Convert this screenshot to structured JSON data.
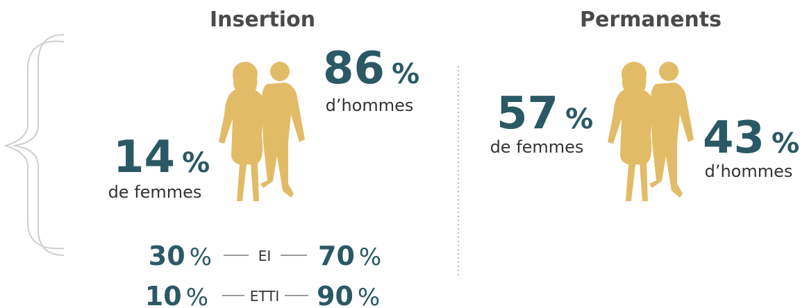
{
  "panels": [
    {
      "title": "Insertion",
      "stats": [
        {
          "value": 86,
          "unit": "%",
          "label": "d’hommes"
        },
        {
          "value": 14,
          "unit": "%",
          "label": "de femmes"
        }
      ],
      "rows": [
        {
          "left": {
            "value": 30,
            "unit": "%"
          },
          "label": "EI",
          "right": {
            "value": 70,
            "unit": "%"
          }
        },
        {
          "left": {
            "value": 10,
            "unit": "%"
          },
          "label": "ETTI",
          "right": {
            "value": 90,
            "unit": "%"
          }
        }
      ]
    },
    {
      "title": "Permanents",
      "stats": [
        {
          "value": 57,
          "unit": "%",
          "label": "de femmes"
        },
        {
          "value": 43,
          "unit": "%",
          "label": "d’hommes"
        }
      ]
    }
  ]
}
